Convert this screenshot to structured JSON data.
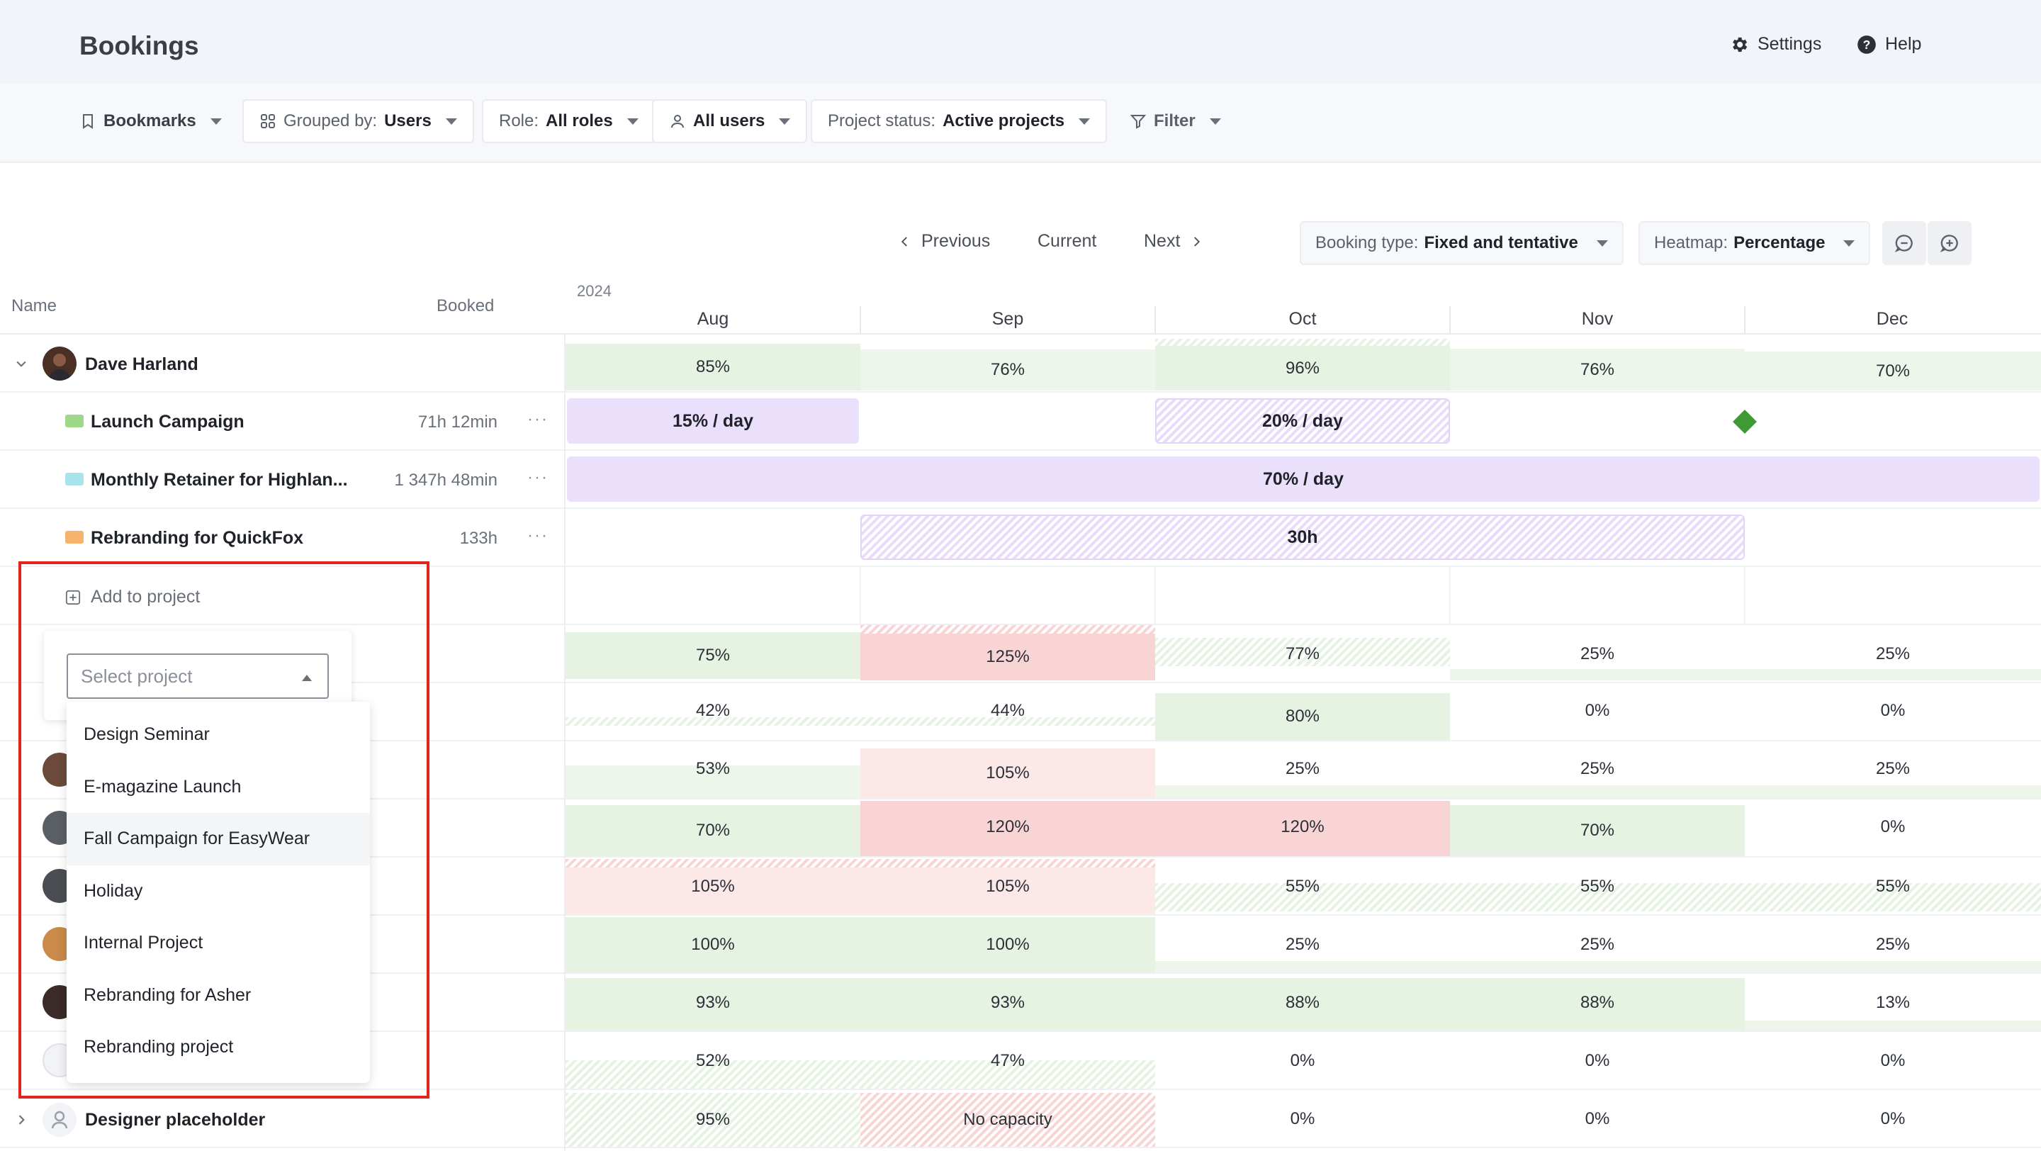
{
  "header": {
    "title": "Bookings",
    "settings_label": "Settings",
    "help_label": "Help"
  },
  "filters": {
    "bookmarks": "Bookmarks",
    "grouped_by_prefix": "Grouped by:",
    "grouped_by_value": "Users",
    "role_prefix": "Role:",
    "role_value": "All roles",
    "users_value": "All users",
    "project_status_prefix": "Project status:",
    "project_status_value": "Active projects",
    "filter_label": "Filter"
  },
  "navigation": {
    "previous": "Previous",
    "current": "Current",
    "next": "Next",
    "booking_type_prefix": "Booking type:",
    "booking_type_value": "Fixed and tentative",
    "heatmap_prefix": "Heatmap:",
    "heatmap_value": "Percentage"
  },
  "columns": {
    "name": "Name",
    "booked": "Booked"
  },
  "timeline": {
    "year": "2024",
    "months": [
      "Aug",
      "Sep",
      "Oct",
      "Nov",
      "Dec"
    ]
  },
  "user": {
    "name": "Dave Harland",
    "heatmap": [
      "85%",
      "76%",
      "96%",
      "76%",
      "70%"
    ]
  },
  "projects": [
    {
      "name": "Launch Campaign",
      "booked": "71h 12min",
      "color": "#9fd88a"
    },
    {
      "name": "Monthly Retainer for Highlan...",
      "booked": "1 347h 48min",
      "color": "#a9e3ec"
    },
    {
      "name": "Rebranding for QuickFox",
      "booked": "133h",
      "color": "#f7b26b"
    }
  ],
  "bars": {
    "launch_aug": "15% / day",
    "launch_oct": "20% / day",
    "retainer": "70% / day",
    "quickfox": "30h"
  },
  "add_to_project": "Add to project",
  "dropdown": {
    "placeholder": "Select project",
    "options": [
      "Design Seminar",
      "E-magazine Launch",
      "Fall Campaign for EasyWear",
      "Holiday",
      "Internal Project",
      "Rebranding for Asher",
      "Rebranding project"
    ]
  },
  "other_rows": [
    [
      "75%",
      "125%",
      "77%",
      "25%",
      "25%"
    ],
    [
      "42%",
      "44%",
      "80%",
      "0%",
      "0%"
    ],
    [
      "53%",
      "105%",
      "25%",
      "25%",
      "25%"
    ],
    [
      "70%",
      "120%",
      "120%",
      "70%",
      "0%"
    ],
    [
      "105%",
      "105%",
      "55%",
      "55%",
      "55%"
    ],
    [
      "100%",
      "100%",
      "25%",
      "25%",
      "25%"
    ],
    [
      "93%",
      "93%",
      "88%",
      "88%",
      "13%"
    ],
    [
      "52%",
      "47%",
      "0%",
      "0%",
      "0%"
    ]
  ],
  "placeholder_row": {
    "name": "Designer placeholder",
    "values": [
      "95%",
      "No capacity",
      "0%",
      "0%",
      "0%"
    ]
  }
}
